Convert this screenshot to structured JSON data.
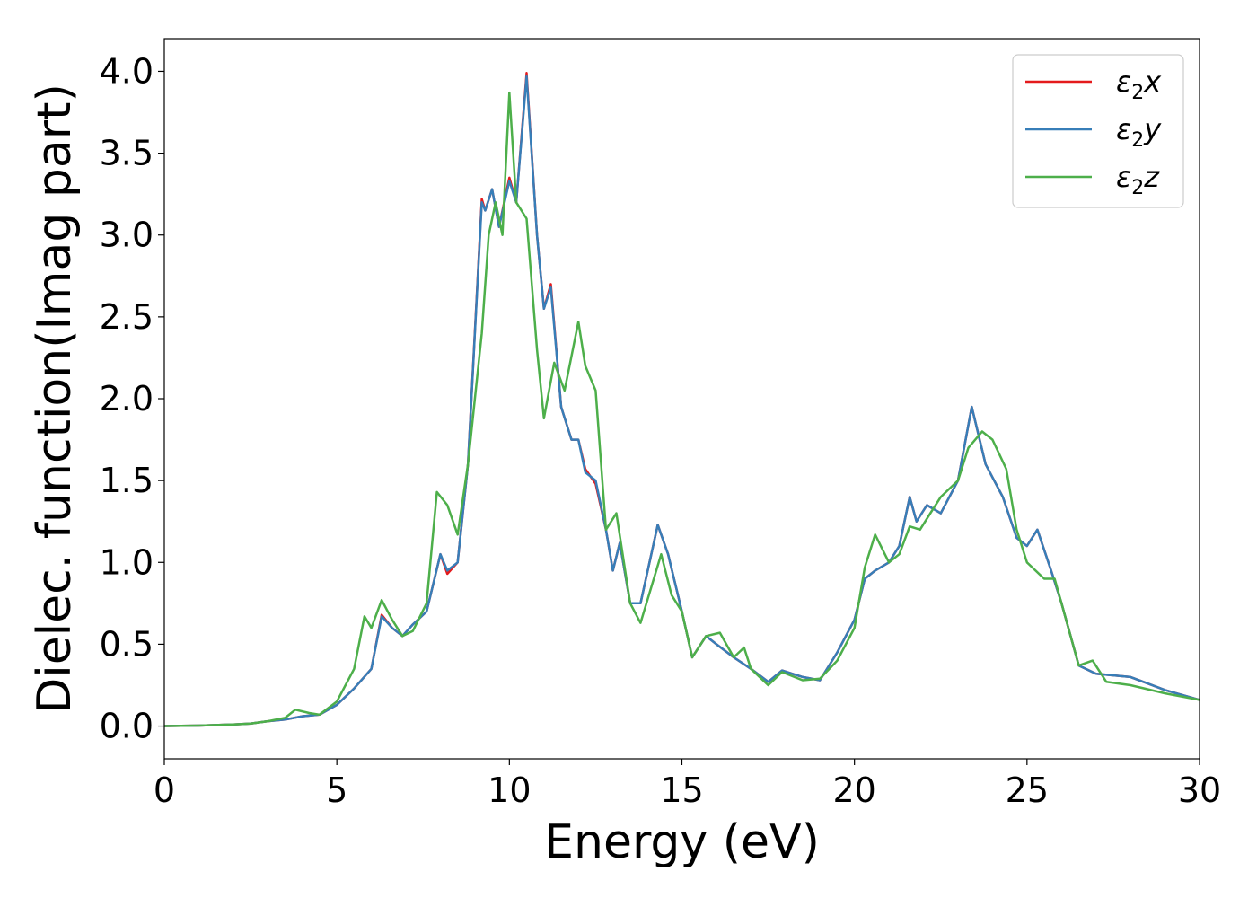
{
  "chart_data": {
    "type": "line",
    "xlabel": "Energy (eV)",
    "ylabel": "Dielec. function(Imag part)",
    "xlim": [
      0,
      30
    ],
    "ylim": [
      -0.2,
      4.2
    ],
    "xticks": [
      0,
      5,
      10,
      15,
      20,
      25,
      30
    ],
    "xtick_labels": [
      "0",
      "5",
      "10",
      "15",
      "20",
      "25",
      "30"
    ],
    "yticks": [
      0.0,
      0.5,
      1.0,
      1.5,
      2.0,
      2.5,
      3.0,
      3.5,
      4.0
    ],
    "ytick_labels": [
      "0.0",
      "0.5",
      "1.0",
      "1.5",
      "2.0",
      "2.5",
      "3.0",
      "3.5",
      "4.0"
    ],
    "grid": false,
    "legend_position": "top-right",
    "series": [
      {
        "name": "ε2x",
        "legend_base": "ε",
        "legend_sub": "2",
        "legend_suffix": "x",
        "color": "#e41a1c",
        "points": [
          [
            0,
            0.0
          ],
          [
            1,
            0.003
          ],
          [
            2,
            0.01
          ],
          [
            2.5,
            0.015
          ],
          [
            3,
            0.03
          ],
          [
            3.5,
            0.04
          ],
          [
            4,
            0.06
          ],
          [
            4.5,
            0.07
          ],
          [
            5,
            0.13
          ],
          [
            5.5,
            0.23
          ],
          [
            6,
            0.35
          ],
          [
            6.3,
            0.68
          ],
          [
            6.6,
            0.6
          ],
          [
            6.9,
            0.55
          ],
          [
            7.2,
            0.62
          ],
          [
            7.6,
            0.7
          ],
          [
            8,
            1.05
          ],
          [
            8.2,
            0.93
          ],
          [
            8.5,
            1.0
          ],
          [
            8.8,
            1.6
          ],
          [
            9.2,
            3.22
          ],
          [
            9.3,
            3.15
          ],
          [
            9.5,
            3.28
          ],
          [
            9.7,
            3.05
          ],
          [
            10,
            3.35
          ],
          [
            10.2,
            3.2
          ],
          [
            10.5,
            3.99
          ],
          [
            10.8,
            3.0
          ],
          [
            11,
            2.55
          ],
          [
            11.2,
            2.7
          ],
          [
            11.5,
            1.95
          ],
          [
            11.8,
            1.75
          ],
          [
            12,
            1.75
          ],
          [
            12.2,
            1.57
          ],
          [
            12.5,
            1.48
          ],
          [
            12.8,
            1.2
          ],
          [
            13,
            0.95
          ],
          [
            13.2,
            1.12
          ],
          [
            13.5,
            0.75
          ],
          [
            13.8,
            0.75
          ],
          [
            14.3,
            1.23
          ],
          [
            14.6,
            1.05
          ],
          [
            15,
            0.7
          ],
          [
            15.3,
            0.42
          ],
          [
            15.7,
            0.55
          ],
          [
            16,
            0.5
          ],
          [
            16.5,
            0.42
          ],
          [
            17,
            0.35
          ],
          [
            17.5,
            0.27
          ],
          [
            17.9,
            0.34
          ],
          [
            18.5,
            0.3
          ],
          [
            19,
            0.28
          ],
          [
            19.5,
            0.45
          ],
          [
            20,
            0.65
          ],
          [
            20.3,
            0.9
          ],
          [
            20.6,
            0.95
          ],
          [
            21,
            1.0
          ],
          [
            21.3,
            1.1
          ],
          [
            21.6,
            1.4
          ],
          [
            21.8,
            1.25
          ],
          [
            22.1,
            1.35
          ],
          [
            22.5,
            1.3
          ],
          [
            23,
            1.5
          ],
          [
            23.4,
            1.95
          ],
          [
            23.8,
            1.6
          ],
          [
            24.3,
            1.4
          ],
          [
            24.7,
            1.15
          ],
          [
            25,
            1.1
          ],
          [
            25.3,
            1.2
          ],
          [
            25.7,
            0.95
          ],
          [
            26,
            0.75
          ],
          [
            26.5,
            0.37
          ],
          [
            27,
            0.32
          ],
          [
            28,
            0.3
          ],
          [
            29,
            0.22
          ],
          [
            30,
            0.16
          ]
        ]
      },
      {
        "name": "ε2y",
        "legend_base": "ε",
        "legend_sub": "2",
        "legend_suffix": "y",
        "color": "#377eb8",
        "points": [
          [
            0,
            0.0
          ],
          [
            1,
            0.003
          ],
          [
            2,
            0.01
          ],
          [
            2.5,
            0.015
          ],
          [
            3,
            0.03
          ],
          [
            3.5,
            0.04
          ],
          [
            4,
            0.06
          ],
          [
            4.5,
            0.07
          ],
          [
            5,
            0.13
          ],
          [
            5.5,
            0.23
          ],
          [
            6,
            0.35
          ],
          [
            6.3,
            0.67
          ],
          [
            6.6,
            0.6
          ],
          [
            6.9,
            0.55
          ],
          [
            7.2,
            0.62
          ],
          [
            7.6,
            0.7
          ],
          [
            8,
            1.05
          ],
          [
            8.2,
            0.95
          ],
          [
            8.5,
            1.0
          ],
          [
            8.8,
            1.6
          ],
          [
            9.2,
            3.2
          ],
          [
            9.3,
            3.15
          ],
          [
            9.5,
            3.28
          ],
          [
            9.7,
            3.05
          ],
          [
            10,
            3.33
          ],
          [
            10.2,
            3.2
          ],
          [
            10.5,
            3.97
          ],
          [
            10.8,
            3.0
          ],
          [
            11,
            2.55
          ],
          [
            11.2,
            2.68
          ],
          [
            11.5,
            1.95
          ],
          [
            11.8,
            1.75
          ],
          [
            12,
            1.75
          ],
          [
            12.2,
            1.55
          ],
          [
            12.5,
            1.5
          ],
          [
            12.8,
            1.2
          ],
          [
            13,
            0.95
          ],
          [
            13.2,
            1.12
          ],
          [
            13.5,
            0.75
          ],
          [
            13.8,
            0.75
          ],
          [
            14.3,
            1.23
          ],
          [
            14.6,
            1.05
          ],
          [
            15,
            0.7
          ],
          [
            15.3,
            0.42
          ],
          [
            15.7,
            0.55
          ],
          [
            16,
            0.5
          ],
          [
            16.5,
            0.42
          ],
          [
            17,
            0.35
          ],
          [
            17.5,
            0.27
          ],
          [
            17.9,
            0.34
          ],
          [
            18.5,
            0.3
          ],
          [
            19,
            0.28
          ],
          [
            19.5,
            0.45
          ],
          [
            20,
            0.65
          ],
          [
            20.3,
            0.9
          ],
          [
            20.6,
            0.95
          ],
          [
            21,
            1.0
          ],
          [
            21.3,
            1.1
          ],
          [
            21.6,
            1.4
          ],
          [
            21.8,
            1.25
          ],
          [
            22.1,
            1.35
          ],
          [
            22.5,
            1.3
          ],
          [
            23,
            1.5
          ],
          [
            23.4,
            1.95
          ],
          [
            23.8,
            1.6
          ],
          [
            24.3,
            1.4
          ],
          [
            24.7,
            1.15
          ],
          [
            25,
            1.1
          ],
          [
            25.3,
            1.2
          ],
          [
            25.7,
            0.95
          ],
          [
            26,
            0.75
          ],
          [
            26.5,
            0.37
          ],
          [
            27,
            0.32
          ],
          [
            28,
            0.3
          ],
          [
            29,
            0.22
          ],
          [
            30,
            0.16
          ]
        ]
      },
      {
        "name": "ε2z",
        "legend_base": "ε",
        "legend_sub": "2",
        "legend_suffix": "z",
        "color": "#4daf4a",
        "points": [
          [
            0,
            0.0
          ],
          [
            1,
            0.003
          ],
          [
            2,
            0.01
          ],
          [
            2.5,
            0.015
          ],
          [
            3,
            0.03
          ],
          [
            3.5,
            0.05
          ],
          [
            3.8,
            0.1
          ],
          [
            4.2,
            0.08
          ],
          [
            4.5,
            0.07
          ],
          [
            5,
            0.15
          ],
          [
            5.5,
            0.35
          ],
          [
            5.8,
            0.67
          ],
          [
            6,
            0.6
          ],
          [
            6.3,
            0.77
          ],
          [
            6.6,
            0.65
          ],
          [
            6.9,
            0.55
          ],
          [
            7.2,
            0.58
          ],
          [
            7.6,
            0.75
          ],
          [
            7.9,
            1.43
          ],
          [
            8.2,
            1.35
          ],
          [
            8.5,
            1.17
          ],
          [
            8.8,
            1.6
          ],
          [
            9.2,
            2.4
          ],
          [
            9.4,
            3.0
          ],
          [
            9.6,
            3.2
          ],
          [
            9.8,
            3.0
          ],
          [
            10,
            3.87
          ],
          [
            10.2,
            3.2
          ],
          [
            10.5,
            3.1
          ],
          [
            10.8,
            2.3
          ],
          [
            11,
            1.88
          ],
          [
            11.3,
            2.22
          ],
          [
            11.6,
            2.05
          ],
          [
            12,
            2.47
          ],
          [
            12.2,
            2.2
          ],
          [
            12.5,
            2.05
          ],
          [
            12.8,
            1.2
          ],
          [
            13.1,
            1.3
          ],
          [
            13.5,
            0.75
          ],
          [
            13.8,
            0.63
          ],
          [
            14.4,
            1.05
          ],
          [
            14.7,
            0.8
          ],
          [
            15,
            0.7
          ],
          [
            15.3,
            0.42
          ],
          [
            15.7,
            0.55
          ],
          [
            16.1,
            0.57
          ],
          [
            16.5,
            0.42
          ],
          [
            16.8,
            0.48
          ],
          [
            17,
            0.35
          ],
          [
            17.5,
            0.25
          ],
          [
            17.9,
            0.33
          ],
          [
            18.5,
            0.28
          ],
          [
            19,
            0.29
          ],
          [
            19.5,
            0.4
          ],
          [
            20,
            0.6
          ],
          [
            20.3,
            0.97
          ],
          [
            20.6,
            1.17
          ],
          [
            21,
            1.0
          ],
          [
            21.3,
            1.05
          ],
          [
            21.6,
            1.22
          ],
          [
            21.9,
            1.2
          ],
          [
            22.2,
            1.3
          ],
          [
            22.5,
            1.4
          ],
          [
            23,
            1.5
          ],
          [
            23.3,
            1.7
          ],
          [
            23.7,
            1.8
          ],
          [
            24,
            1.75
          ],
          [
            24.4,
            1.57
          ],
          [
            24.7,
            1.2
          ],
          [
            25,
            1.0
          ],
          [
            25.5,
            0.9
          ],
          [
            25.8,
            0.9
          ],
          [
            26,
            0.75
          ],
          [
            26.5,
            0.37
          ],
          [
            26.9,
            0.4
          ],
          [
            27.3,
            0.27
          ],
          [
            28,
            0.25
          ],
          [
            29,
            0.2
          ],
          [
            30,
            0.16
          ]
        ]
      }
    ]
  }
}
